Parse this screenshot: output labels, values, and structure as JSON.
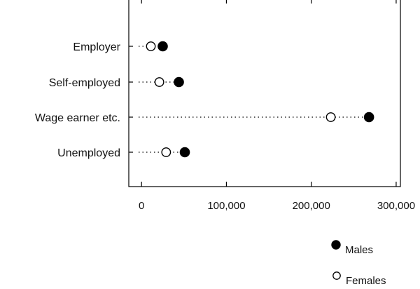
{
  "chart_data": {
    "type": "dot",
    "categories": [
      "Employer",
      "Self-employed",
      "Wage earner etc.",
      "Unemployed"
    ],
    "series": [
      {
        "name": "Males",
        "marker": "filled-circle",
        "color": "#000000",
        "values": [
          25000,
          44000,
          268000,
          51000
        ]
      },
      {
        "name": "Females",
        "marker": "open-circle",
        "color": "#000000",
        "values": [
          11000,
          21000,
          223000,
          29000
        ]
      }
    ],
    "x_ticks": [
      0,
      100000,
      200000,
      300000
    ],
    "x_tick_labels": [
      "0",
      "100,000",
      "200,000",
      "300,000"
    ],
    "xlim": [
      -15000,
      305000
    ],
    "title": "",
    "xlabel": "",
    "ylabel": "",
    "grid": false,
    "legend_placement": "bottom-right"
  }
}
